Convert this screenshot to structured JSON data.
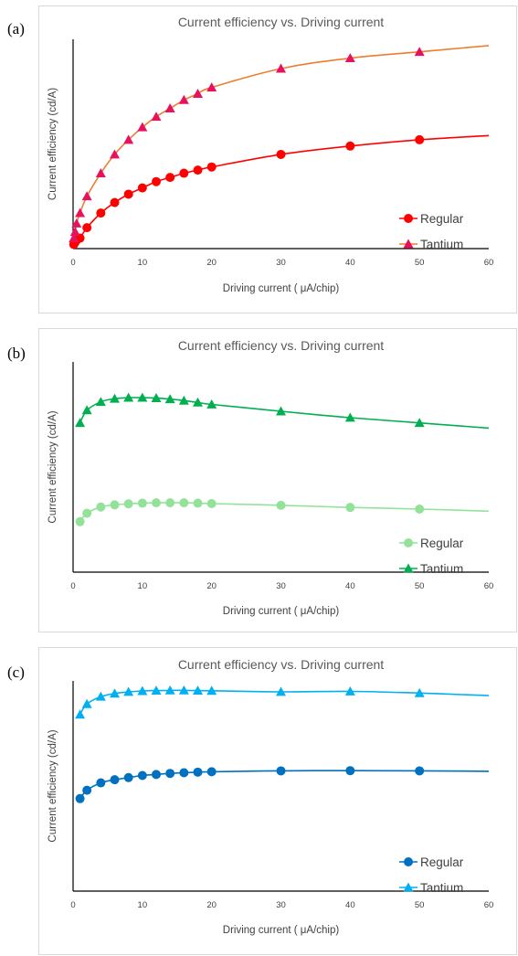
{
  "panels": [
    {
      "label": "(a)",
      "chart_data": {
        "type": "line",
        "title": "Current efficiency vs. Driving current",
        "xlabel": "Driving current ( μA/chip)",
        "ylabel": "Current efficiency (cd/A)",
        "xlim": [
          0,
          60
        ],
        "xticks": [
          0,
          10,
          20,
          30,
          40,
          50,
          60
        ],
        "ylim": [
          0,
          100
        ],
        "y_tick_labels_shown": false,
        "grid": false,
        "legend": "bottom-right",
        "series": [
          {
            "name": "Regular",
            "color": "#ff0000",
            "marker": "circle",
            "x": [
              0.1,
              0.3,
              0.5,
              1,
              2,
              4,
              6,
              8,
              10,
              12,
              14,
              16,
              18,
              20,
              30,
              40,
              50,
              60
            ],
            "y": [
              2,
              3,
              4,
              5,
              10,
              17,
              22,
              26,
              29,
              32,
              34,
              36,
              37.5,
              39,
              45,
              49,
              52,
              54
            ]
          },
          {
            "name": "Tantium",
            "color": "#e8115b",
            "line_color": "#ed7d31",
            "marker": "triangle",
            "x": [
              0.1,
              0.3,
              0.5,
              1,
              2,
              4,
              6,
              8,
              10,
              12,
              14,
              16,
              18,
              20,
              30,
              40,
              50,
              60
            ],
            "y": [
              5,
              8,
              12,
              17,
              25,
              36,
              45,
              52,
              58,
              63,
              67,
              71,
              74,
              77,
              86,
              91,
              94,
              97
            ]
          }
        ]
      }
    },
    {
      "label": "(b)",
      "chart_data": {
        "type": "line",
        "title": "Current efficiency vs. Driving current",
        "xlabel": "Driving current ( μA/chip)",
        "ylabel": "Current efficiency (cd/A)",
        "xlim": [
          0,
          60
        ],
        "xticks": [
          0,
          10,
          20,
          30,
          40,
          50,
          60
        ],
        "ylim": [
          0,
          100
        ],
        "y_tick_labels_shown": false,
        "grid": false,
        "legend": "bottom-right",
        "series": [
          {
            "name": "Regular",
            "color": "#92e399",
            "marker": "circle",
            "x": [
              1,
              2,
              4,
              6,
              8,
              10,
              12,
              14,
              16,
              18,
              20,
              30,
              40,
              50,
              60
            ],
            "y": [
              24,
              28,
              31,
              32,
              32.5,
              32.8,
              33,
              33,
              33,
              32.8,
              32.6,
              31.8,
              30.8,
              30,
              29
            ]
          },
          {
            "name": "Tantium",
            "color": "#00b050",
            "marker": "triangle",
            "x": [
              1,
              2,
              4,
              6,
              8,
              10,
              12,
              14,
              16,
              18,
              20,
              30,
              40,
              50,
              60
            ],
            "y": [
              71,
              77,
              81,
              82.5,
              83,
              83,
              82.8,
              82.3,
              81.6,
              80.7,
              79.8,
              76.5,
              73.5,
              71,
              68.5
            ]
          }
        ]
      }
    },
    {
      "label": "(c)",
      "chart_data": {
        "type": "line",
        "title": "Current efficiency vs. Driving current",
        "xlabel": "Driving current ( μA/chip)",
        "ylabel": "Current efficiency (cd/A)",
        "xlim": [
          0,
          60
        ],
        "xticks": [
          0,
          10,
          20,
          30,
          40,
          50,
          60
        ],
        "ylim": [
          0,
          100
        ],
        "y_tick_labels_shown": false,
        "grid": false,
        "legend": "bottom-right",
        "series": [
          {
            "name": "Regular",
            "color": "#0070c0",
            "marker": "circle",
            "x": [
              1,
              2,
              4,
              6,
              8,
              10,
              12,
              14,
              16,
              18,
              20,
              30,
              40,
              50,
              60
            ],
            "y": [
              44,
              48,
              51.5,
              53,
              54,
              55,
              55.5,
              56,
              56.3,
              56.6,
              56.8,
              57.2,
              57.3,
              57.2,
              57
            ]
          },
          {
            "name": "Tantium",
            "color": "#00b0f0",
            "marker": "triangle",
            "x": [
              1,
              2,
              4,
              6,
              8,
              10,
              12,
              14,
              16,
              18,
              20,
              30,
              40,
              50,
              60
            ],
            "y": [
              84,
              89,
              92.5,
              94,
              94.8,
              95.2,
              95.4,
              95.5,
              95.5,
              95.4,
              95.3,
              94.8,
              95,
              94.2,
              93
            ]
          }
        ]
      }
    }
  ]
}
